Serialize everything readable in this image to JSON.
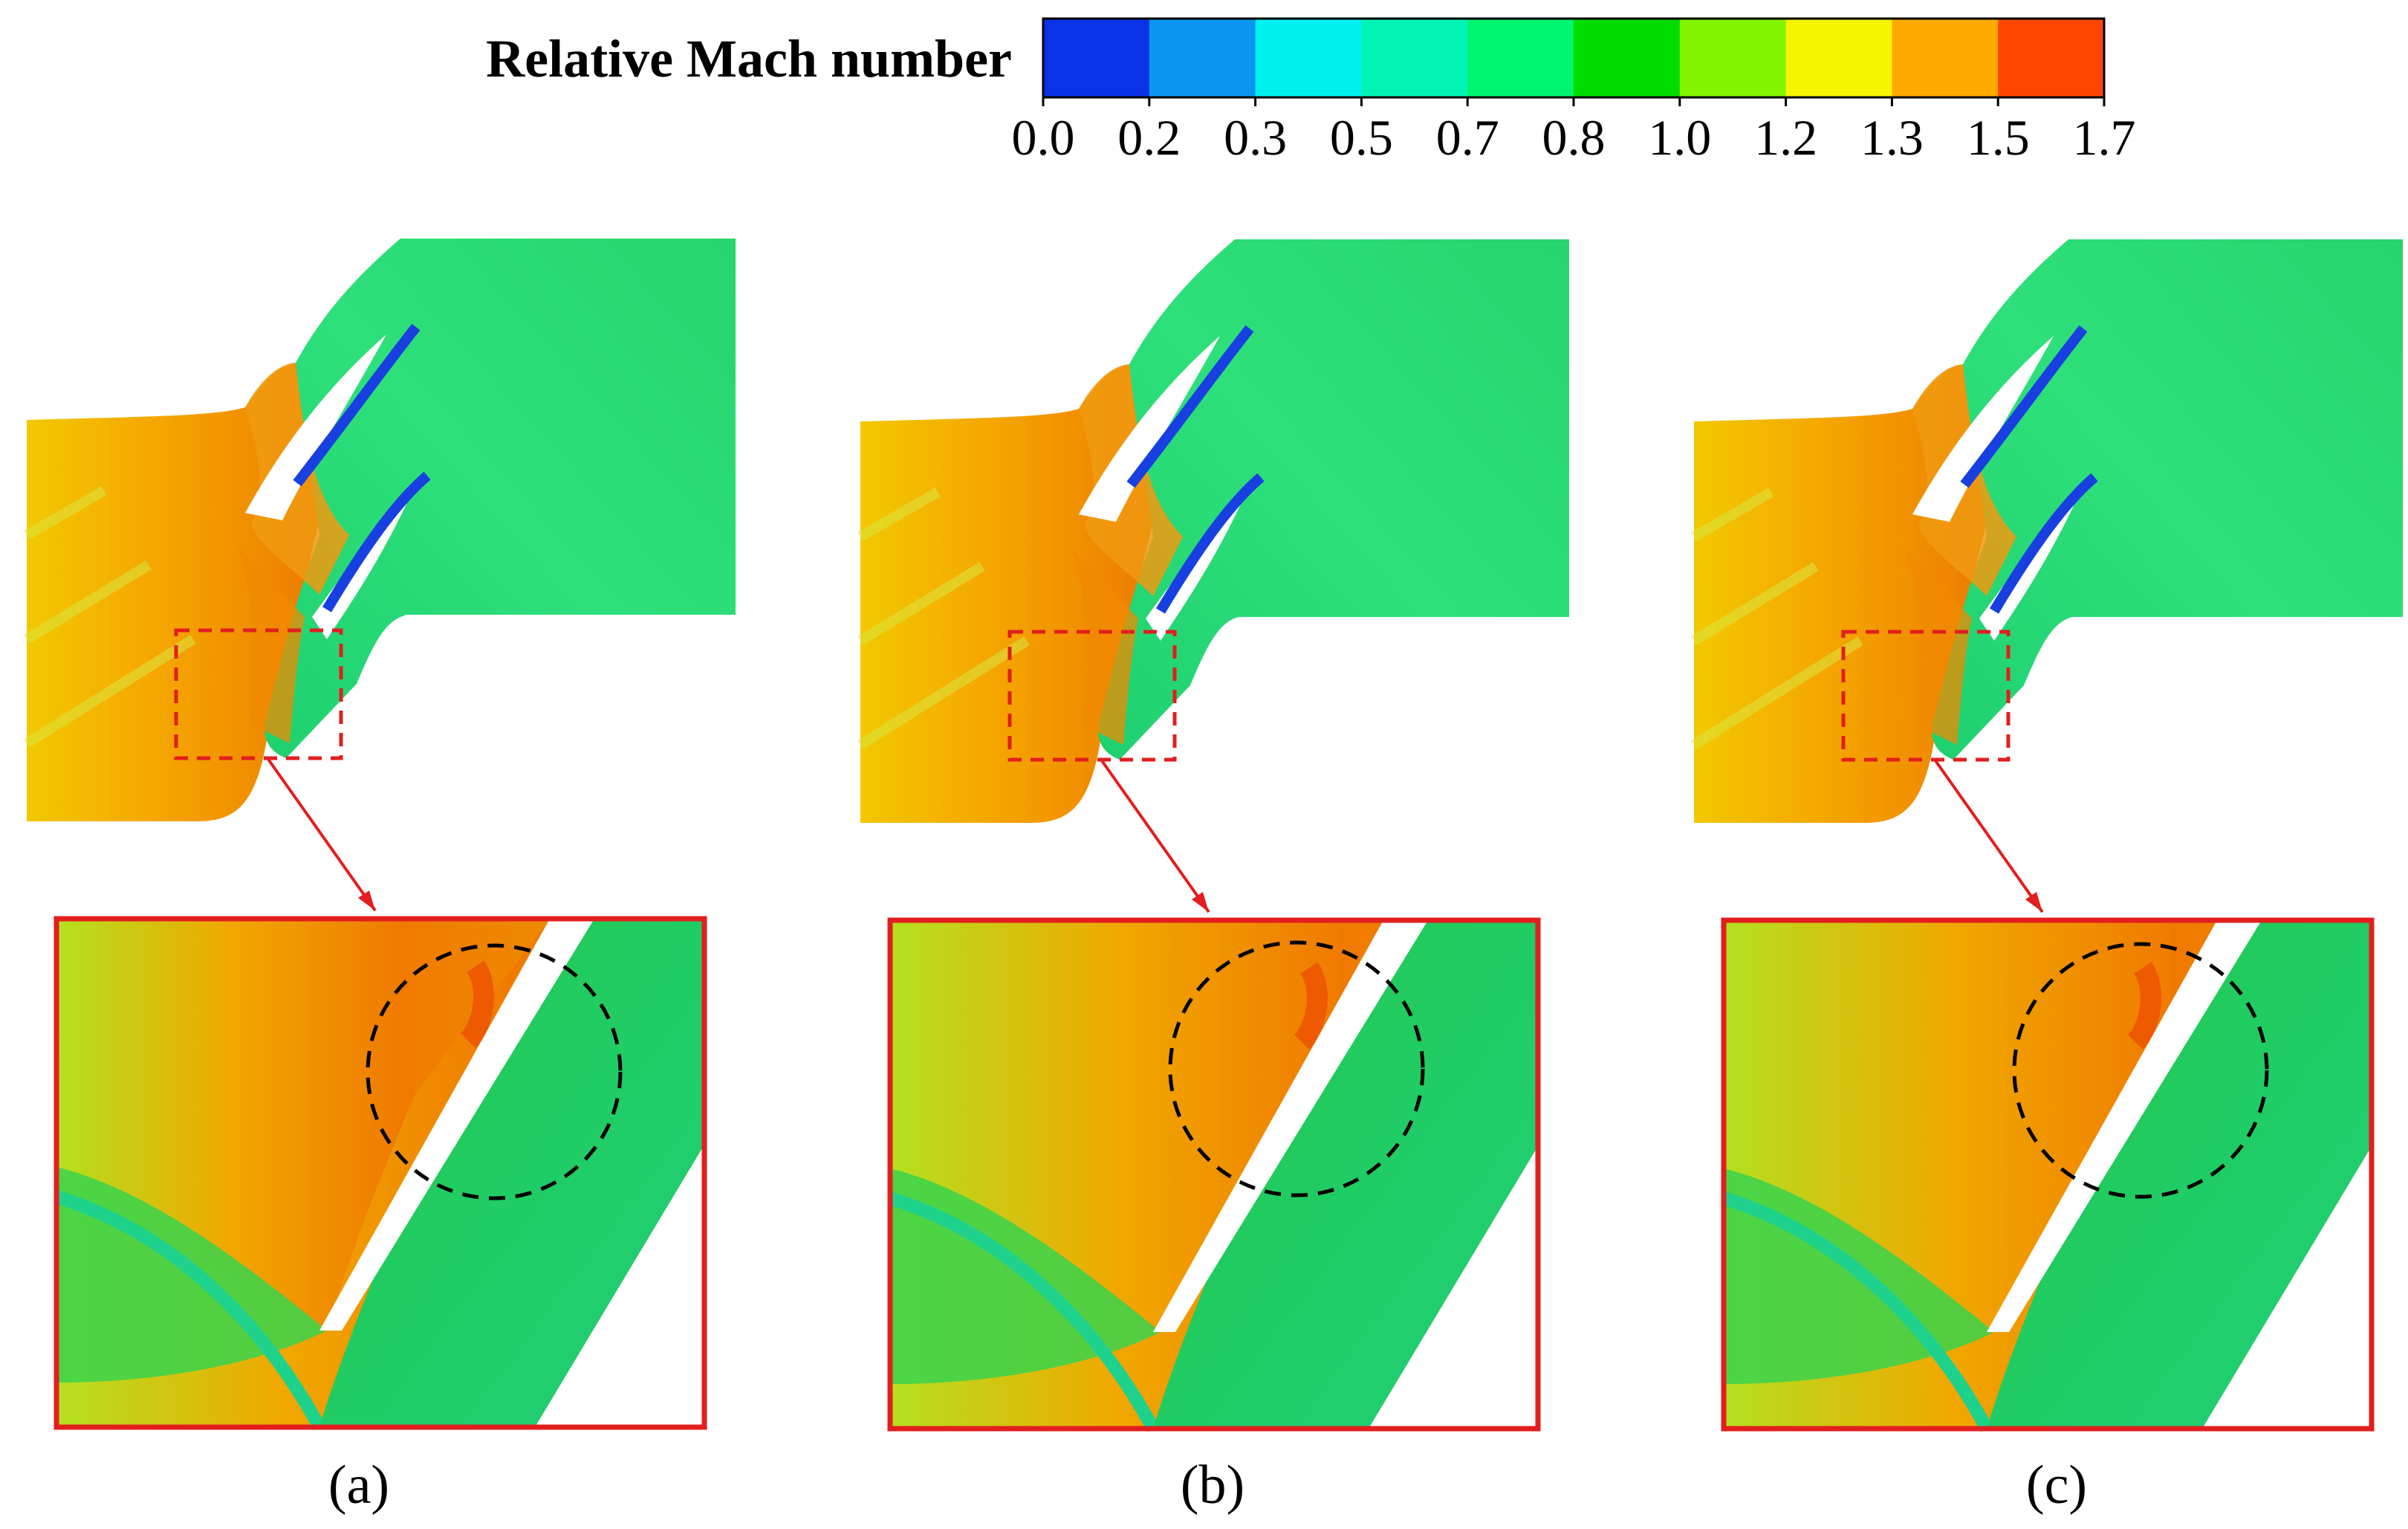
{
  "legend": {
    "title": "Relative Mach number",
    "ticks": [
      "0.0",
      "0.2",
      "0.3",
      "0.5",
      "0.7",
      "0.8",
      "1.0",
      "1.2",
      "1.3",
      "1.5",
      "1.7"
    ],
    "colors": [
      "#0a32e6",
      "#0a96f0",
      "#00f0f0",
      "#00f5b4",
      "#00f56e",
      "#00dc00",
      "#82f500",
      "#f5f500",
      "#ffaa00",
      "#ff4600"
    ]
  },
  "panels": [
    {
      "caption": "(a)"
    },
    {
      "caption": "(b)"
    },
    {
      "caption": "(c)"
    }
  ]
}
